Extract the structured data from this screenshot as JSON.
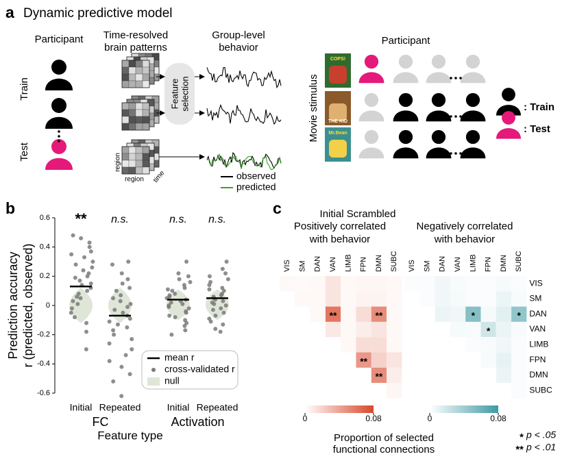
{
  "panel_labels": [
    "a",
    "b",
    "c"
  ],
  "panel_a": {
    "title": "Dynamic predictive model",
    "participant_header": "Participant",
    "brain_header": [
      "Time-resolved",
      "brain patterns"
    ],
    "behavior_header": [
      "Group-level",
      "behavior"
    ],
    "feature_selection": [
      "Feature",
      "selection"
    ],
    "row_labels": [
      "Train",
      "Test"
    ],
    "axis_labels": {
      "region_y": "region",
      "region_x": "region",
      "time": "time"
    },
    "line_legend": [
      {
        "name": "observed",
        "color": "#000000"
      },
      {
        "name": "predicted",
        "color": "#3aa02a"
      }
    ],
    "right_header": "Participant",
    "stimulus_label": "Movie stimulus",
    "posters": [
      "COPS!",
      "THE KID",
      "Mr.Bean"
    ],
    "icon_legend": [
      {
        "text": ": Train",
        "color": "#000000"
      },
      {
        "text": ": Test",
        "color": "#e5197a"
      }
    ]
  },
  "chart_data": [
    {
      "type": "strip",
      "ylabel": [
        "Prediction accuracy",
        "r (predicted, observed)"
      ],
      "xlabel": "Feature type",
      "categories": [
        "Initial",
        "Repeated",
        "Initial",
        "Repeated"
      ],
      "groups": [
        "FC",
        "Activation"
      ],
      "annotations": [
        "**",
        "n.s.",
        "n.s.",
        "n.s."
      ],
      "ylim": [
        -0.6,
        0.6
      ],
      "yticks": [
        0.6,
        0.4,
        0.2,
        0,
        -0.2,
        -0.4,
        -0.6
      ],
      "series": [
        {
          "name": "mean r",
          "color": "#000000",
          "values": [
            0.13,
            -0.07,
            0.04,
            0.05
          ]
        },
        {
          "name": "cross-validated r",
          "color": "#7a7a7a",
          "values": [
            [
              0.48,
              0.46,
              0.43,
              0.4,
              0.37,
              0.35,
              0.33,
              0.3,
              0.28,
              0.26,
              0.24,
              0.22,
              0.2,
              0.19,
              0.17,
              0.15,
              0.14,
              0.12,
              0.1,
              0.08,
              0.06,
              0.05,
              0.03,
              0.01,
              -0.02,
              -0.05,
              -0.08,
              -0.12,
              -0.18,
              -0.3
            ],
            [
              0.3,
              0.28,
              0.22,
              0.18,
              0.15,
              0.12,
              0.1,
              0.07,
              0.05,
              0.03,
              0.01,
              -0.01,
              -0.03,
              -0.05,
              -0.07,
              -0.09,
              -0.11,
              -0.13,
              -0.15,
              -0.17,
              -0.2,
              -0.23,
              -0.26,
              -0.3,
              -0.34,
              -0.38,
              -0.42,
              -0.47,
              -0.52,
              -0.62
            ],
            [
              0.3,
              0.22,
              0.2,
              0.18,
              0.16,
              0.14,
              0.12,
              0.11,
              0.1,
              0.08,
              0.07,
              0.06,
              0.05,
              0.04,
              0.03,
              0.02,
              0.01,
              0,
              -0.01,
              -0.02,
              -0.04,
              -0.05,
              -0.07,
              -0.08,
              -0.1,
              -0.12,
              -0.14,
              -0.17,
              -0.2
            ],
            [
              0.3,
              0.25,
              0.22,
              0.2,
              0.18,
              0.16,
              0.14,
              0.12,
              0.11,
              0.1,
              0.08,
              0.07,
              0.06,
              0.05,
              0.04,
              0.03,
              0.02,
              0.01,
              0,
              -0.02,
              -0.03,
              -0.05,
              -0.07,
              -0.09,
              -0.11,
              -0.13,
              -0.16,
              -0.18
            ]
          ]
        },
        {
          "name": "null",
          "color": "#dfe6d8",
          "values": [
            [
              -0.12,
              0.12
            ],
            [
              -0.12,
              0.12
            ],
            [
              -0.1,
              0.11
            ],
            [
              -0.1,
              0.11
            ]
          ]
        }
      ]
    },
    {
      "type": "heatmap",
      "title": [
        "Positively correlated",
        "with behavior"
      ],
      "color": "#d9482b",
      "categories": [
        "VIS",
        "SM",
        "DAN",
        "VAN",
        "LIMB",
        "FPN",
        "DMN",
        "SUBC"
      ],
      "z": [
        [
          0.003,
          0.002,
          0.003,
          0.012,
          0.003,
          0.004,
          0.004,
          0.003
        ],
        [
          null,
          0.003,
          0.003,
          0.012,
          0.003,
          0.005,
          0.005,
          0.003
        ],
        [
          null,
          null,
          0.003,
          0.06,
          0.003,
          0.015,
          0.05,
          0.003
        ],
        [
          null,
          null,
          null,
          0.01,
          0.003,
          0.008,
          0.012,
          0.003
        ],
        [
          null,
          null,
          null,
          null,
          0.003,
          0.015,
          0.015,
          0.003
        ],
        [
          null,
          null,
          null,
          null,
          null,
          0.045,
          0.02,
          0.012
        ],
        [
          null,
          null,
          null,
          null,
          null,
          null,
          0.05,
          0.008
        ],
        [
          null,
          null,
          null,
          null,
          null,
          null,
          null,
          0.004
        ]
      ],
      "annotations": [
        {
          "row": 2,
          "col": 3,
          "label": "**"
        },
        {
          "row": 2,
          "col": 6,
          "label": "**"
        },
        {
          "row": 5,
          "col": 5,
          "label": "**"
        },
        {
          "row": 6,
          "col": 6,
          "label": "**"
        }
      ],
      "zlim": [
        0,
        0.08
      ],
      "zticks": [
        0,
        0.08
      ]
    },
    {
      "type": "heatmap",
      "title": [
        "Negatively correlated",
        "with behavior"
      ],
      "color": "#3e9aa3",
      "categories": [
        "VIS",
        "SM",
        "DAN",
        "VAN",
        "LIMB",
        "FPN",
        "DMN",
        "SUBC"
      ],
      "row_labels": [
        "VIS",
        "SM",
        "DAN",
        "VAN",
        "LIMB",
        "FPN",
        "DMN",
        "SUBC"
      ],
      "z": [
        [
          0.002,
          0.002,
          0.006,
          0.003,
          0.002,
          0.002,
          0.004,
          0.002
        ],
        [
          null,
          0.002,
          0.006,
          0.004,
          0.002,
          0.002,
          0.008,
          0.003
        ],
        [
          null,
          null,
          0.008,
          0.006,
          0.05,
          0.004,
          0.012,
          0.045
        ],
        [
          null,
          null,
          null,
          0.004,
          0.003,
          0.02,
          0.008,
          0.003
        ],
        [
          null,
          null,
          null,
          null,
          0.002,
          0.003,
          0.006,
          0.002
        ],
        [
          null,
          null,
          null,
          null,
          null,
          0.003,
          0.01,
          0.002
        ],
        [
          null,
          null,
          null,
          null,
          null,
          null,
          0.008,
          0.002
        ],
        [
          null,
          null,
          null,
          null,
          null,
          null,
          null,
          0.002
        ]
      ],
      "annotations": [
        {
          "row": 2,
          "col": 4,
          "label": "*"
        },
        {
          "row": 2,
          "col": 7,
          "label": "*"
        },
        {
          "row": 3,
          "col": 5,
          "label": "*"
        }
      ],
      "zlim": [
        0,
        0.08
      ],
      "zticks": [
        0,
        0.08
      ]
    }
  ],
  "panel_c": {
    "heading": "Initial Scrambled",
    "colorbar_title": [
      "Proportion of selected",
      "functional connections"
    ],
    "significance_legend": [
      {
        "symbol": "*",
        "text": "p < .05"
      },
      {
        "symbol": "**",
        "text": "p < .01"
      }
    ]
  }
}
